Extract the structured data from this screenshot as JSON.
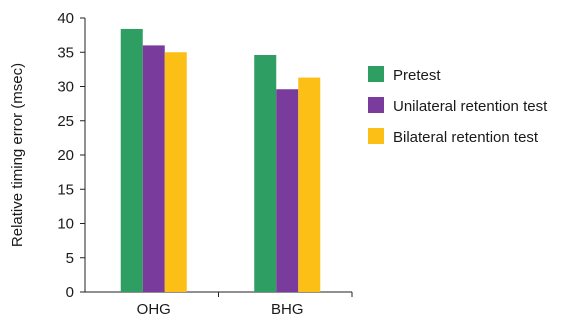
{
  "chart_data": {
    "type": "bar",
    "categories": [
      "OHG",
      "BHG"
    ],
    "ylabel": "Relative timing error (msec)",
    "xlabel": "",
    "ylim": [
      0,
      40
    ],
    "yticks": [
      0,
      5,
      10,
      15,
      20,
      25,
      30,
      35,
      40
    ],
    "grid": false,
    "legend_position": "right",
    "series": [
      {
        "name": "Pretest",
        "color": "#2e9e62",
        "values": [
          38.4,
          34.6
        ]
      },
      {
        "name": "Unilateral retention test",
        "color": "#7a3c9c",
        "values": [
          36.0,
          29.6
        ]
      },
      {
        "name": "Bilateral retention test",
        "color": "#fbbf16",
        "values": [
          35.0,
          31.3
        ]
      }
    ]
  }
}
